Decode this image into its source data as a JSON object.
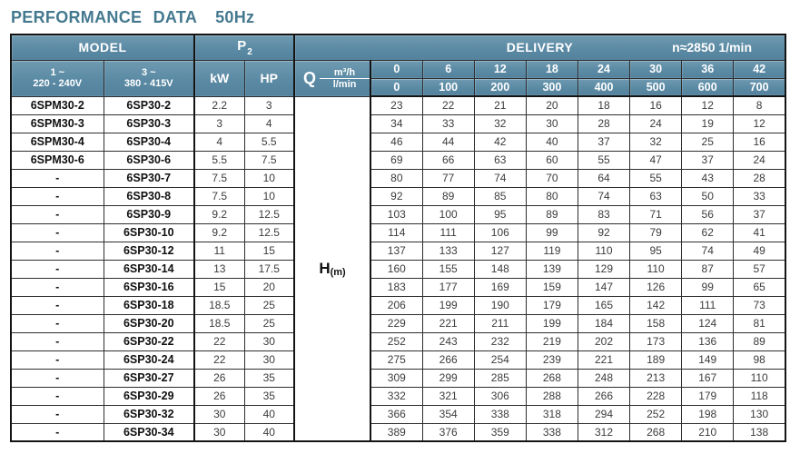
{
  "page": {
    "title": "PERFORMANCE DATA",
    "frequency": "50Hz"
  },
  "colors": {
    "header_bg": "#5b8aa4",
    "header_text": "#ffffff",
    "title_text": "#44798f",
    "border_dark": "#141414",
    "cell_text": "#3c3c3c"
  },
  "table": {
    "header": {
      "model_label": "MODEL",
      "p2_label": "P",
      "p2_sub": "2",
      "delivery_label": "DELIVERY",
      "speed_label": "n≈2850 1/min",
      "single_phase_line1": "1 ~",
      "single_phase_line2": "220 - 240V",
      "three_phase_line1": "3 ~",
      "three_phase_line2": "380 - 415V",
      "kw_label": "kW",
      "hp_label": "HP",
      "q_label": "Q",
      "q_unit_top": "m³/h",
      "q_unit_bottom": "l/min",
      "flow_m3h": [
        "0",
        "6",
        "12",
        "18",
        "24",
        "30",
        "36",
        "42"
      ],
      "flow_lmin": [
        "0",
        "100",
        "200",
        "300",
        "400",
        "500",
        "600",
        "700"
      ]
    },
    "head_label": "H",
    "head_unit": "(m)",
    "rows": [
      {
        "model_1ph": "6SPM30-2",
        "model_3ph": "6SP30-2",
        "kw": "2.2",
        "hp": "3",
        "head": [
          "23",
          "22",
          "21",
          "20",
          "18",
          "16",
          "12",
          "8"
        ]
      },
      {
        "model_1ph": "6SPM30-3",
        "model_3ph": "6SP30-3",
        "kw": "3",
        "hp": "4",
        "head": [
          "34",
          "33",
          "32",
          "30",
          "28",
          "24",
          "19",
          "12"
        ]
      },
      {
        "model_1ph": "6SPM30-4",
        "model_3ph": "6SP30-4",
        "kw": "4",
        "hp": "5.5",
        "head": [
          "46",
          "44",
          "42",
          "40",
          "37",
          "32",
          "25",
          "16"
        ]
      },
      {
        "model_1ph": "6SPM30-6",
        "model_3ph": "6SP30-6",
        "kw": "5.5",
        "hp": "7.5",
        "head": [
          "69",
          "66",
          "63",
          "60",
          "55",
          "47",
          "37",
          "24"
        ]
      },
      {
        "model_1ph": "-",
        "model_3ph": "6SP30-7",
        "kw": "7.5",
        "hp": "10",
        "head": [
          "80",
          "77",
          "74",
          "70",
          "64",
          "55",
          "43",
          "28"
        ]
      },
      {
        "model_1ph": "-",
        "model_3ph": "6SP30-8",
        "kw": "7.5",
        "hp": "10",
        "head": [
          "92",
          "89",
          "85",
          "80",
          "74",
          "63",
          "50",
          "33"
        ]
      },
      {
        "model_1ph": "-",
        "model_3ph": "6SP30-9",
        "kw": "9.2",
        "hp": "12.5",
        "head": [
          "103",
          "100",
          "95",
          "89",
          "83",
          "71",
          "56",
          "37"
        ]
      },
      {
        "model_1ph": "-",
        "model_3ph": "6SP30-10",
        "kw": "9.2",
        "hp": "12.5",
        "head": [
          "114",
          "111",
          "106",
          "99",
          "92",
          "79",
          "62",
          "41"
        ]
      },
      {
        "model_1ph": "-",
        "model_3ph": "6SP30-12",
        "kw": "11",
        "hp": "15",
        "head": [
          "137",
          "133",
          "127",
          "119",
          "110",
          "95",
          "74",
          "49"
        ]
      },
      {
        "model_1ph": "-",
        "model_3ph": "6SP30-14",
        "kw": "13",
        "hp": "17.5",
        "head": [
          "160",
          "155",
          "148",
          "139",
          "129",
          "110",
          "87",
          "57"
        ]
      },
      {
        "model_1ph": "-",
        "model_3ph": "6SP30-16",
        "kw": "15",
        "hp": "20",
        "head": [
          "183",
          "177",
          "169",
          "159",
          "147",
          "126",
          "99",
          "65"
        ]
      },
      {
        "model_1ph": "-",
        "model_3ph": "6SP30-18",
        "kw": "18.5",
        "hp": "25",
        "head": [
          "206",
          "199",
          "190",
          "179",
          "165",
          "142",
          "111",
          "73"
        ]
      },
      {
        "model_1ph": "-",
        "model_3ph": "6SP30-20",
        "kw": "18.5",
        "hp": "25",
        "head": [
          "229",
          "221",
          "211",
          "199",
          "184",
          "158",
          "124",
          "81"
        ]
      },
      {
        "model_1ph": "-",
        "model_3ph": "6SP30-22",
        "kw": "22",
        "hp": "30",
        "head": [
          "252",
          "243",
          "232",
          "219",
          "202",
          "173",
          "136",
          "89"
        ]
      },
      {
        "model_1ph": "-",
        "model_3ph": "6SP30-24",
        "kw": "22",
        "hp": "30",
        "head": [
          "275",
          "266",
          "254",
          "239",
          "221",
          "189",
          "149",
          "98"
        ]
      },
      {
        "model_1ph": "-",
        "model_3ph": "6SP30-27",
        "kw": "26",
        "hp": "35",
        "head": [
          "309",
          "299",
          "285",
          "268",
          "248",
          "213",
          "167",
          "110"
        ]
      },
      {
        "model_1ph": "-",
        "model_3ph": "6SP30-29",
        "kw": "26",
        "hp": "35",
        "head": [
          "332",
          "321",
          "306",
          "288",
          "266",
          "228",
          "179",
          "118"
        ]
      },
      {
        "model_1ph": "-",
        "model_3ph": "6SP30-32",
        "kw": "30",
        "hp": "40",
        "head": [
          "366",
          "354",
          "338",
          "318",
          "294",
          "252",
          "198",
          "130"
        ]
      },
      {
        "model_1ph": "-",
        "model_3ph": "6SP30-34",
        "kw": "30",
        "hp": "40",
        "head": [
          "389",
          "376",
          "359",
          "338",
          "312",
          "268",
          "210",
          "138"
        ]
      }
    ]
  }
}
